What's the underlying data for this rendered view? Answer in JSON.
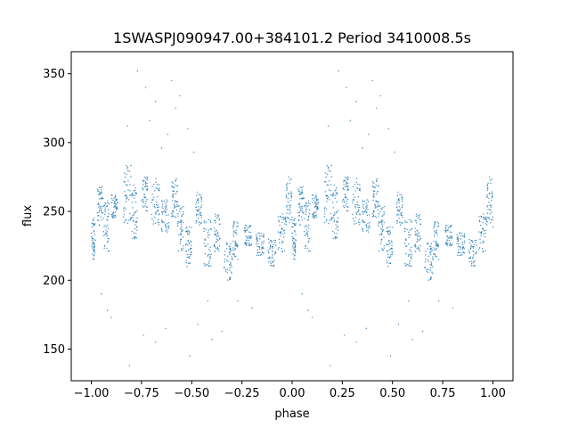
{
  "chart_data": {
    "type": "scatter",
    "title": "1SWASPJ090947.00+384101.2 Period 3410008.5s",
    "xlabel": "phase",
    "ylabel": "flux",
    "xlim": [
      -1.1,
      1.1
    ],
    "ylim": [
      127,
      366
    ],
    "xticks": [
      -1.0,
      -0.75,
      -0.5,
      -0.25,
      0.0,
      0.25,
      0.5,
      0.75,
      1.0
    ],
    "xtick_labels": [
      "−1.00",
      "−0.75",
      "−0.50",
      "−0.25",
      "0.00",
      "0.25",
      "0.50",
      "0.75",
      "1.00"
    ],
    "yticks": [
      150,
      200,
      250,
      300,
      350
    ],
    "ytick_labels": [
      "150",
      "200",
      "250",
      "300",
      "350"
    ],
    "grid": false,
    "marker_color": "#1f77b4",
    "half_phase_clusters": [
      {
        "phase": [
          0.0,
          0.02
        ],
        "flux": [
          215,
          245
        ]
      },
      {
        "phase": [
          0.03,
          0.06
        ],
        "flux": [
          240,
          268
        ]
      },
      {
        "phase": [
          0.06,
          0.09
        ],
        "flux": [
          220,
          258
        ]
      },
      {
        "phase": [
          0.1,
          0.13
        ],
        "flux": [
          245,
          262
        ]
      },
      {
        "phase": [
          0.16,
          0.2
        ],
        "flux": [
          240,
          285
        ]
      },
      {
        "phase": [
          0.2,
          0.23
        ],
        "flux": [
          230,
          270
        ]
      },
      {
        "phase": [
          0.25,
          0.28
        ],
        "flux": [
          250,
          275
        ]
      },
      {
        "phase": [
          0.3,
          0.34
        ],
        "flux": [
          240,
          275
        ]
      },
      {
        "phase": [
          0.35,
          0.39
        ],
        "flux": [
          235,
          260
        ]
      },
      {
        "phase": [
          0.4,
          0.43
        ],
        "flux": [
          245,
          275
        ]
      },
      {
        "phase": [
          0.43,
          0.46
        ],
        "flux": [
          220,
          255
        ]
      },
      {
        "phase": [
          0.47,
          0.5
        ],
        "flux": [
          210,
          240
        ]
      },
      {
        "phase": [
          0.52,
          0.55
        ],
        "flux": [
          240,
          265
        ]
      },
      {
        "phase": [
          0.56,
          0.6
        ],
        "flux": [
          210,
          245
        ]
      },
      {
        "phase": [
          0.61,
          0.64
        ],
        "flux": [
          220,
          248
        ]
      },
      {
        "phase": [
          0.66,
          0.7
        ],
        "flux": [
          200,
          230
        ]
      },
      {
        "phase": [
          0.7,
          0.73
        ],
        "flux": [
          215,
          245
        ]
      },
      {
        "phase": [
          0.76,
          0.8
        ],
        "flux": [
          225,
          240
        ]
      },
      {
        "phase": [
          0.82,
          0.86
        ],
        "flux": [
          218,
          235
        ]
      },
      {
        "phase": [
          0.88,
          0.92
        ],
        "flux": [
          210,
          230
        ]
      },
      {
        "phase": [
          0.93,
          0.97
        ],
        "flux": [
          220,
          250
        ]
      },
      {
        "phase": [
          0.97,
          1.0
        ],
        "flux": [
          235,
          275
        ]
      }
    ],
    "outliers": [
      {
        "x": 0.23,
        "y": 352
      },
      {
        "x": 0.27,
        "y": 340
      },
      {
        "x": 0.32,
        "y": 330
      },
      {
        "x": 0.35,
        "y": 296
      },
      {
        "x": 0.42,
        "y": 325
      },
      {
        "x": 0.44,
        "y": 334
      },
      {
        "x": 0.48,
        "y": 310
      },
      {
        "x": 0.51,
        "y": 293
      },
      {
        "x": 0.4,
        "y": 345
      },
      {
        "x": 0.29,
        "y": 316
      },
      {
        "x": 0.18,
        "y": 312
      },
      {
        "x": 0.38,
        "y": 306
      },
      {
        "x": 0.19,
        "y": 138
      },
      {
        "x": 0.26,
        "y": 160
      },
      {
        "x": 0.32,
        "y": 155
      },
      {
        "x": 0.37,
        "y": 165
      },
      {
        "x": 0.49,
        "y": 145
      },
      {
        "x": 0.53,
        "y": 168
      },
      {
        "x": 0.6,
        "y": 157
      },
      {
        "x": 0.65,
        "y": 163
      },
      {
        "x": 0.08,
        "y": 178
      },
      {
        "x": 0.1,
        "y": 173
      },
      {
        "x": 0.58,
        "y": 185
      },
      {
        "x": 0.73,
        "y": 185
      },
      {
        "x": 0.8,
        "y": 180
      },
      {
        "x": 0.05,
        "y": 190
      }
    ]
  }
}
